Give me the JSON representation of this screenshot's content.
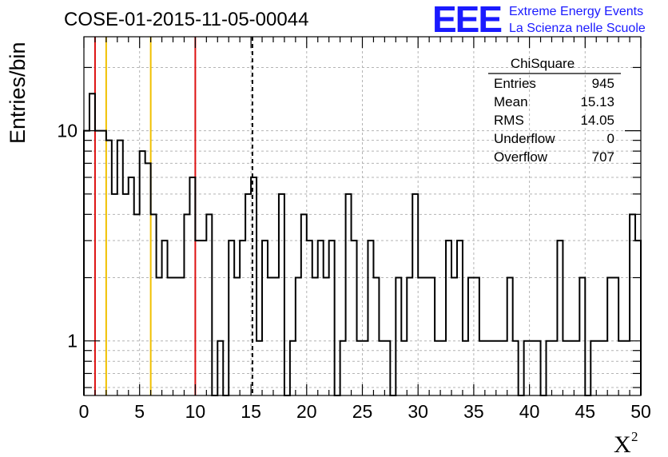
{
  "title": "COSE-01-2015-11-05-00044",
  "logo": {
    "mark": "EEE",
    "line1": "Extreme Energy Events",
    "line2": "La Scienza nelle Scuole",
    "color": "#1a1aff"
  },
  "stats": {
    "name": "ChiSquare",
    "rows": [
      {
        "label": "Entries",
        "value": "945"
      },
      {
        "label": "Mean",
        "value": "15.13"
      },
      {
        "label": "RMS",
        "value": "14.05"
      },
      {
        "label": "Underflow",
        "value": "0"
      },
      {
        "label": "Overflow",
        "value": "707"
      }
    ]
  },
  "chart_data": {
    "type": "histogram",
    "title": "COSE-01-2015-11-05-00044",
    "xlabel": "X",
    "xlabel_superscript": "2",
    "ylabel": "Entries/bin",
    "xlim": [
      0,
      50
    ],
    "ylim": [
      0.55,
      28
    ],
    "yscale": "log",
    "grid": true,
    "bin_width": 0.5,
    "x_ticks": [
      0,
      5,
      10,
      15,
      20,
      25,
      30,
      35,
      40,
      45,
      50
    ],
    "y_tick_labels": [
      1,
      10
    ],
    "values": [
      10,
      15,
      10,
      10,
      9,
      5,
      9,
      5,
      6,
      4,
      8,
      7,
      4,
      2,
      3,
      2,
      2,
      2,
      4,
      6,
      3,
      3,
      4,
      0,
      1,
      0,
      3,
      2,
      3,
      5,
      6,
      1,
      3,
      2,
      2,
      5,
      0,
      1,
      2,
      4,
      3,
      2,
      3,
      2,
      3,
      0,
      1,
      5,
      3,
      1,
      1,
      3,
      2,
      1,
      1,
      0,
      2,
      1,
      2,
      5,
      2,
      2,
      2,
      1,
      1,
      3,
      2,
      3,
      1,
      2,
      2,
      1,
      1,
      1,
      1,
      1,
      2,
      1,
      0,
      1,
      1,
      1,
      0,
      1,
      1,
      3,
      1,
      1,
      1,
      2,
      0,
      1,
      1,
      1,
      2,
      2,
      1,
      1,
      4,
      3
    ],
    "vertical_lines": [
      {
        "x": 1,
        "color": "#dd1111",
        "style": "solid"
      },
      {
        "x": 2,
        "color": "#f0c000",
        "style": "solid"
      },
      {
        "x": 6,
        "color": "#f0c000",
        "style": "solid"
      },
      {
        "x": 10,
        "color": "#dd1111",
        "style": "solid"
      },
      {
        "x": 15.13,
        "color": "#000000",
        "style": "dashed"
      }
    ]
  }
}
